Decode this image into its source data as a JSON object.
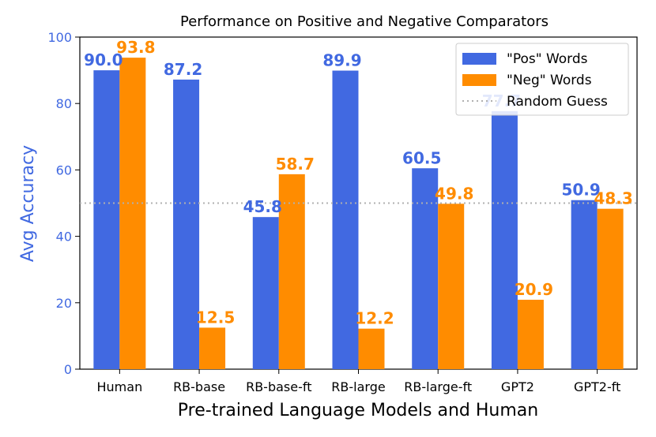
{
  "chart_data": {
    "type": "bar",
    "title": "Performance on Positive and Negative Comparators",
    "xlabel": "Pre-trained Language Models and Human",
    "ylabel": "Avg Accuracy",
    "ylim": [
      0,
      100
    ],
    "yticks": [
      0,
      20,
      40,
      60,
      80,
      100
    ],
    "categories": [
      "Human",
      "RB-base",
      "RB-base-ft",
      "RB-large",
      "RB-large-ft",
      "GPT2",
      "GPT2-ft"
    ],
    "series": [
      {
        "name": "\"Pos\" Words",
        "color": "#4169E1",
        "values": [
          90.0,
          87.2,
          45.8,
          89.9,
          60.5,
          77.7,
          50.9
        ]
      },
      {
        "name": "\"Neg\" Words",
        "color": "#FF8C00",
        "values": [
          93.8,
          12.5,
          58.7,
          12.2,
          49.8,
          20.9,
          48.3
        ]
      }
    ],
    "reference_line": {
      "name": "Random Guess",
      "value": 50,
      "color": "#b0b0b0",
      "style": "dotted"
    },
    "legend_position": "top-right",
    "ylabel_color": "#4169E1",
    "ytick_color": "#4169E1"
  }
}
